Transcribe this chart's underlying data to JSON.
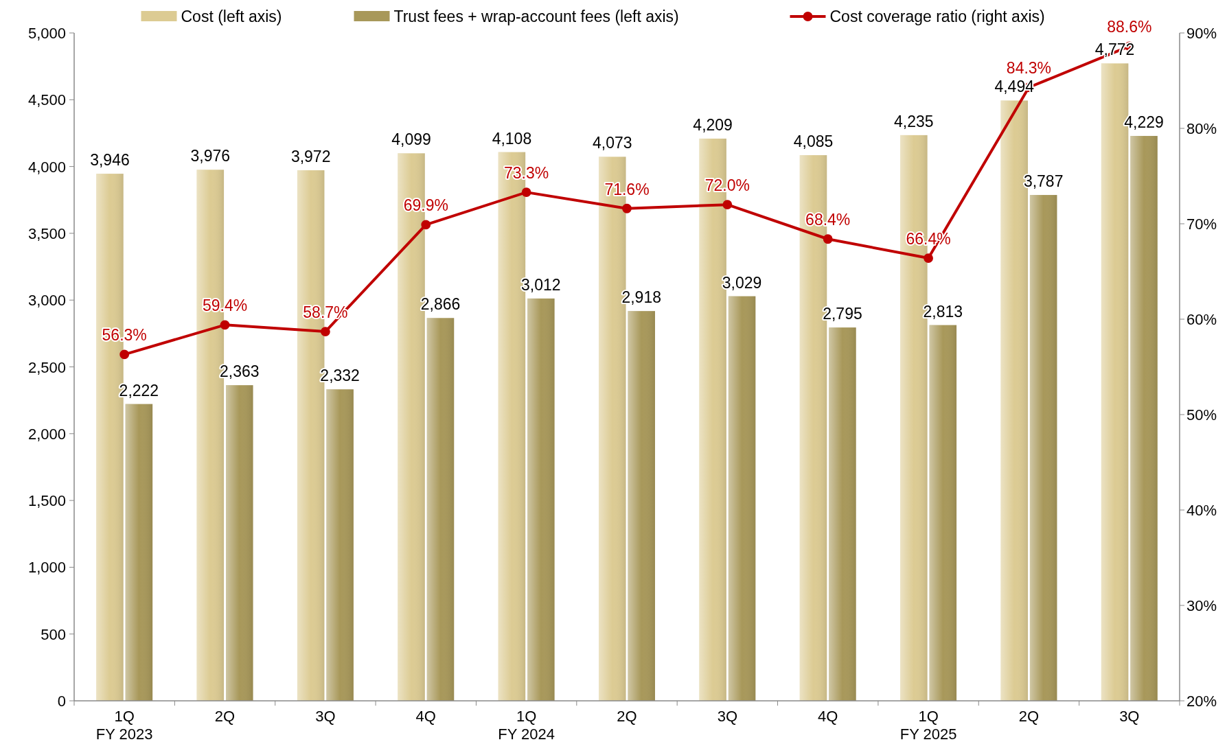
{
  "chart_data": {
    "type": "bar",
    "categories": [
      "1Q\nFY 2023",
      "2Q",
      "3Q",
      "4Q",
      "1Q\nFY 2024",
      "2Q",
      "3Q",
      "4Q",
      "1Q\nFY 2025",
      "2Q",
      "3Q"
    ],
    "series": [
      {
        "name": "Cost (left axis)",
        "color": "#dccb93",
        "values": [
          3946,
          3976,
          3972,
          4099,
          4108,
          4073,
          4209,
          4085,
          4235,
          4494,
          4772
        ],
        "value_labels": [
          "3,946",
          "3,976",
          "3,972",
          "4,099",
          "4,108",
          "4,073",
          "4,209",
          "4,085",
          "4,235",
          "4,494",
          "4,772"
        ]
      },
      {
        "name": "Trust fees + wrap-account fees (left axis)",
        "color": "#a8985a",
        "values": [
          2222,
          2363,
          2332,
          2866,
          3012,
          2918,
          3029,
          2795,
          2813,
          3787,
          4229
        ],
        "value_labels": [
          "2,222",
          "2,363",
          "2,332",
          "2,866",
          "3,012",
          "2,918",
          "3,029",
          "2,795",
          "2,813",
          "3,787",
          "4,229"
        ]
      },
      {
        "name": "Cost coverage ratio (right axis)",
        "type": "line",
        "axis": "y2",
        "color": "#c00000",
        "values": [
          56.3,
          59.4,
          58.7,
          69.9,
          73.3,
          71.6,
          72.0,
          68.4,
          66.4,
          84.3,
          88.6
        ],
        "value_labels": [
          "56.3%",
          "59.4%",
          "58.7%",
          "69.9%",
          "73.3%",
          "71.6%",
          "72.0%",
          "68.4%",
          "66.4%",
          "84.3%",
          "88.6%"
        ]
      }
    ],
    "ylim": [
      0,
      5000
    ],
    "yticks": [
      0,
      {
        "value": 500,
        "label": "500"
      },
      {
        "value": 1000,
        "label": "1,000"
      },
      {
        "value": 1500,
        "label": "1,500"
      },
      {
        "value": 2000,
        "label": "2,000"
      },
      {
        "value": 2500,
        "label": "2,500"
      },
      {
        "value": 3000,
        "label": "3,000"
      },
      {
        "value": 3500,
        "label": "3,500"
      },
      {
        "value": 4000,
        "label": "4,000"
      },
      {
        "value": 4500,
        "label": "4,500"
      },
      {
        "value": 5000,
        "label": "5,000"
      }
    ],
    "y2lim": [
      20,
      90
    ],
    "y2ticks": [
      {
        "value": 20,
        "label": "20%"
      },
      {
        "value": 30,
        "label": "30%"
      },
      {
        "value": 40,
        "label": "40%"
      },
      {
        "value": 50,
        "label": "50%"
      },
      {
        "value": 60,
        "label": "60%"
      },
      {
        "value": 70,
        "label": "70%"
      },
      {
        "value": 80,
        "label": "80%"
      },
      {
        "value": 90,
        "label": "90%"
      }
    ],
    "legend": "top",
    "grid": false,
    "marker": "circle",
    "line_style": "solid"
  }
}
